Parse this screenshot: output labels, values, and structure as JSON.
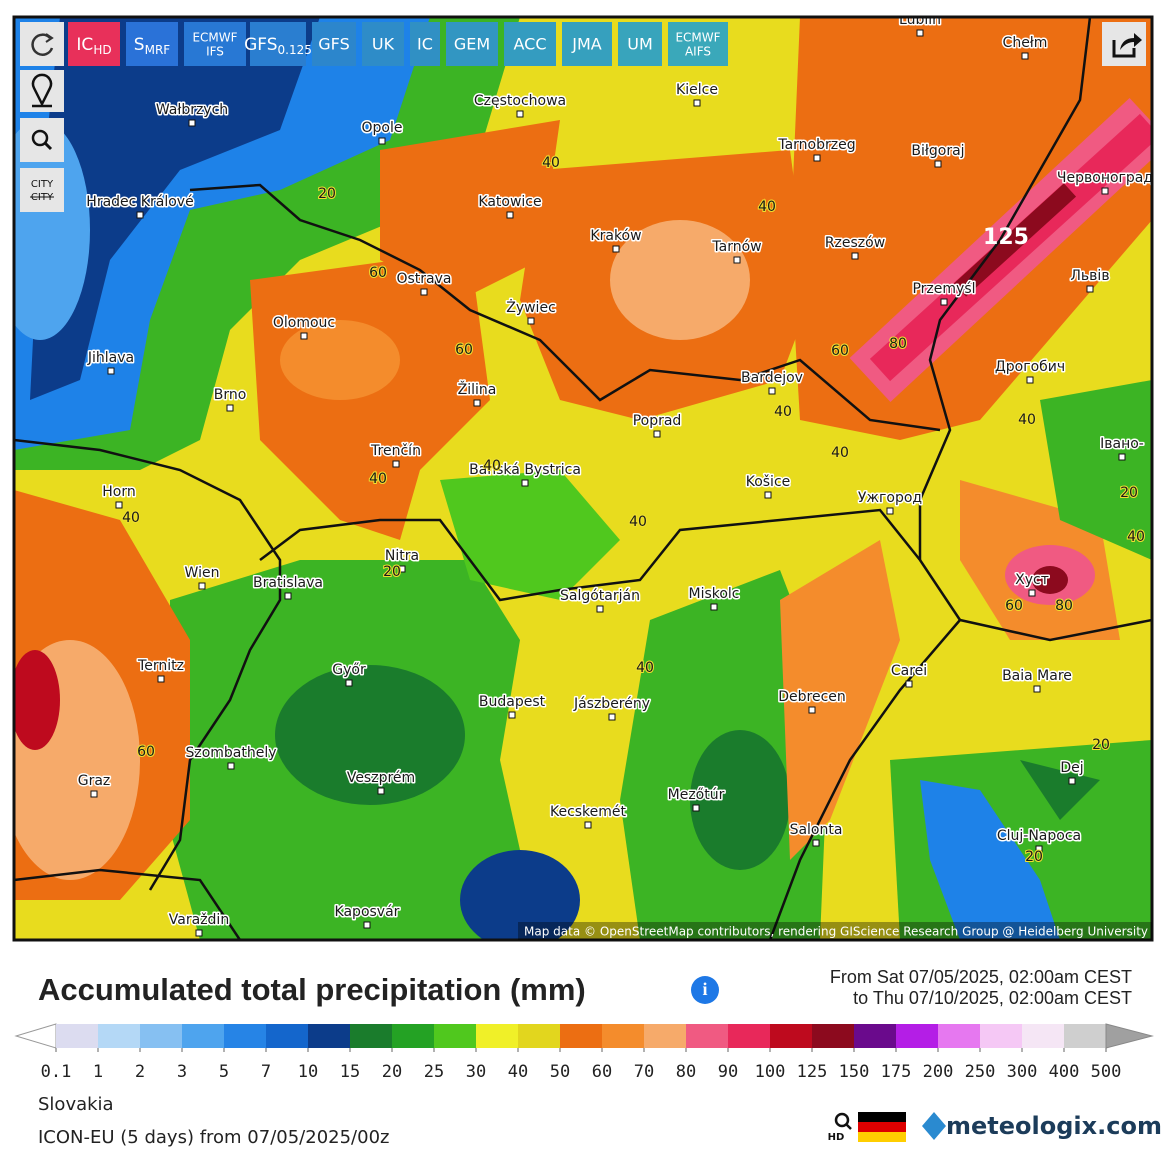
{
  "toolbar": {
    "models": [
      {
        "label": "IC",
        "sub": "HD"
      },
      {
        "label": "S",
        "sub": "MRF"
      },
      {
        "label": "ECMWF",
        "sub": "IFS"
      },
      {
        "label": "GFS",
        "sub": "0.125"
      },
      {
        "label": "GFS"
      },
      {
        "label": "UK"
      },
      {
        "label": "IC"
      },
      {
        "label": "GEM"
      },
      {
        "label": "ACC"
      },
      {
        "label": "JMA"
      },
      {
        "label": "UM"
      },
      {
        "label": "ECMWF",
        "sub": "AIFS"
      }
    ],
    "city_toggle": [
      "CITY",
      "CITY"
    ]
  },
  "map": {
    "cities": [
      "Wałbrzych",
      "Opole",
      "Częstochowa",
      "Kielce",
      "Lublin",
      "Chełm",
      "Hradec Králové",
      "Katowice",
      "Tarnobrzeg",
      "Biłgoraj",
      "Червоноград",
      "Kraków",
      "Tarnów",
      "Rzeszów",
      "Ostrava",
      "Львів",
      "Żywiec",
      "Przemyśl",
      "Olomouc",
      "Jihlava",
      "Žilina",
      "Bardejov",
      "Дрогобич",
      "Brno",
      "Poprad",
      "Trenčín",
      "Івано-",
      "Banská Bystrica",
      "Košice",
      "Ужгород",
      "Horn",
      "Nitra",
      "Wien",
      "Bratislava",
      "Хуст",
      "Salgótarján",
      "Miskolc",
      "Ternitz",
      "Győr",
      "Carei",
      "Baia Mare",
      "Budapest",
      "Jászberény",
      "Debrecen",
      "Szombathely",
      "Graz",
      "Veszprém",
      "Mezőtúr",
      "Kecskemét",
      "Dej",
      "Salonta",
      "Cluj-Napoca",
      "Kaposvár",
      "Varaždin"
    ],
    "contour_labels": [
      40,
      40,
      20,
      60,
      60,
      60,
      80,
      125,
      40,
      40,
      40,
      40,
      40,
      40,
      20,
      40,
      20,
      40,
      60,
      80,
      40,
      60,
      20,
      20
    ],
    "attribution": "Map data © OpenStreetMap contributors, rendering GIScience Research Group @ Heidelberg University"
  },
  "legend": {
    "title": "Accumulated total precipitation (mm)",
    "period": [
      "From Sat 07/05/2025, 02:00am CEST",
      "to Thu 07/10/2025, 02:00am CEST"
    ],
    "under_color": "#ffffff",
    "colors": [
      "#dcdcf0",
      "#b4d8f6",
      "#86c0f2",
      "#4ea4ee",
      "#2684e6",
      "#1466cc",
      "#0c3c8a",
      "#1a7c2c",
      "#24a224",
      "#50c81e",
      "#f0f028",
      "#e2d61e",
      "#ec6e12",
      "#f48c2c",
      "#f6aa6a",
      "#f05a82",
      "#e8285a",
      "#be0a1e",
      "#8c0a1e",
      "#6a0a8c",
      "#b41ee6",
      "#e678f0",
      "#f5c8f5",
      "#f5e6f5",
      "#cfcfcf"
    ],
    "over_color": "#a0a0a0",
    "ticks": [
      0.1,
      1,
      2,
      3,
      5,
      7,
      10,
      15,
      20,
      25,
      30,
      40,
      50,
      60,
      70,
      80,
      90,
      100,
      125,
      150,
      175,
      200,
      250,
      300,
      400,
      500
    ]
  },
  "footer": {
    "region": "Slovakia",
    "model_run": "ICON-EU (5 days) from 07/05/2025/00z",
    "hd": "HD",
    "brand": "meteologix.com"
  }
}
